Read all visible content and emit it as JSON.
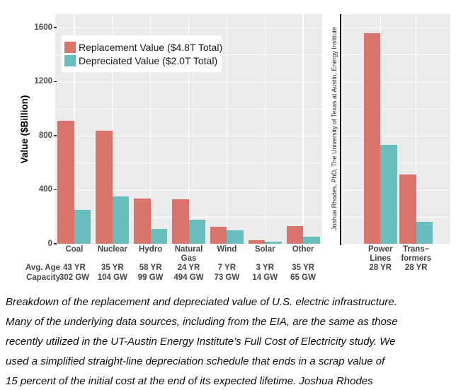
{
  "attribution": "Joshua Rhodes, PhD, The University of Texas at Austin, Energy Institute",
  "caption_lines": [
    "Breakdown of the replacement and depreciated value of U.S. electric infrastructure.",
    "Many of the underlying data sources, including from the EIA, are the same as those",
    "recently utilized in the UT-Austin Energy Institute’s Full Cost of Electricity study. We",
    "used a simplified straight-line depreciation schedule that ends in a scrap value of",
    "15 percent of the initial cost at the end of its expected lifetime. Joshua Rhodes"
  ],
  "chart_data": {
    "type": "bar",
    "title": "",
    "ylabel": "Value ($Billion)",
    "ylim": [
      0,
      1700
    ],
    "yticks": [
      0,
      400,
      800,
      1200,
      1600
    ],
    "grid": {
      "major": [
        0,
        400,
        800,
        1200,
        1600
      ],
      "minor": [
        200,
        600,
        1000,
        1400
      ]
    },
    "colors": {
      "panel_background": "#EBEBEB",
      "replacement": "#D9736B",
      "depreciated": "#68BDBD",
      "axis_text": "#4d4d4d"
    },
    "legend": [
      {
        "series": "replacement",
        "label": "Replacement Value ($4.8T Total)",
        "color": "#D9736B"
      },
      {
        "series": "depreciated",
        "label": "Depreciated Value ($2.0T Total)",
        "color": "#68BDBD"
      }
    ],
    "row_headers": {
      "avg_age": "Avg. Age",
      "capacity": "Capacity"
    },
    "panels": [
      {
        "name": "generation",
        "categories": [
          {
            "label_lines": [
              "Coal"
            ],
            "avg_age": "43 YR",
            "capacity": "302 GW",
            "replacement": 910,
            "depreciated": 250
          },
          {
            "label_lines": [
              "Nuclear"
            ],
            "avg_age": "35 YR",
            "capacity": "104 GW",
            "replacement": 835,
            "depreciated": 350
          },
          {
            "label_lines": [
              "Hydro"
            ],
            "avg_age": "58 YR",
            "capacity": "99 GW",
            "replacement": 335,
            "depreciated": 110
          },
          {
            "label_lines": [
              "Natural",
              "Gas"
            ],
            "avg_age": "24 YR",
            "capacity": "494 GW",
            "replacement": 330,
            "depreciated": 180
          },
          {
            "label_lines": [
              "Wind"
            ],
            "avg_age": "7 YR",
            "capacity": "73 GW",
            "replacement": 125,
            "depreciated": 100
          },
          {
            "label_lines": [
              "Solar"
            ],
            "avg_age": "3 YR",
            "capacity": "14 GW",
            "replacement": 25,
            "depreciated": 18
          },
          {
            "label_lines": [
              "Other"
            ],
            "avg_age": "35 YR",
            "capacity": "65 GW",
            "replacement": 130,
            "depreciated": 50
          }
        ]
      },
      {
        "name": "delivery",
        "categories": [
          {
            "label_lines": [
              "Power",
              "Lines",
              "28 YR"
            ],
            "replacement": 1560,
            "depreciated": 730
          },
          {
            "label_lines": [
              "Trans−",
              "formers",
              "28 YR"
            ],
            "replacement": 515,
            "depreciated": 160
          }
        ]
      }
    ]
  }
}
